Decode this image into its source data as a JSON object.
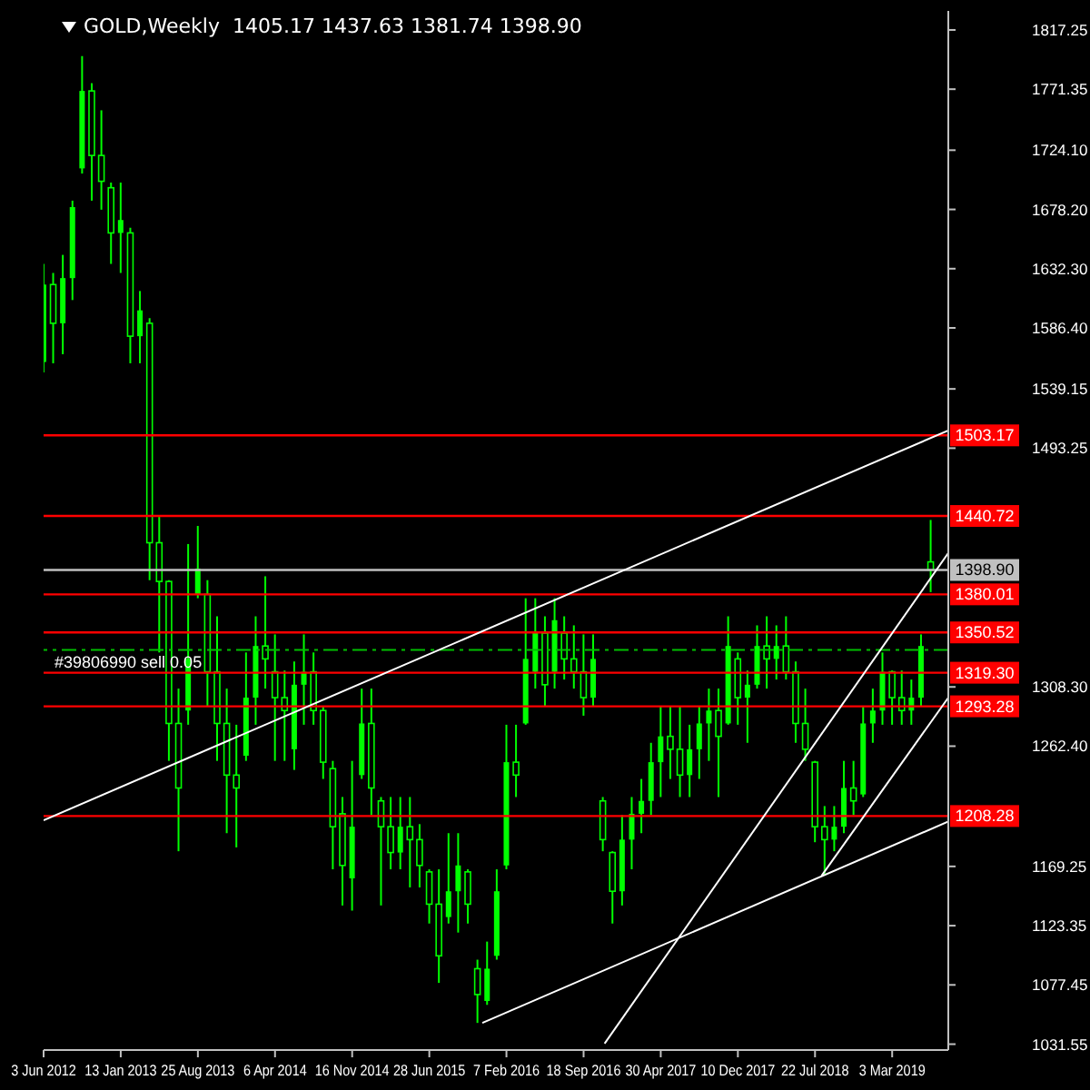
{
  "chart_data": {
    "type": "candlestick",
    "title": "GOLD,Weekly  1405.17 1437.63 1381.74 1398.90",
    "color": "#00ff00",
    "x": [
      "2012-06-03",
      "2012-07-01",
      "2012-07-29",
      "2012-08-26",
      "2012-09-23",
      "2012-10-21",
      "2012-11-18",
      "2012-12-16",
      "2013-01-13",
      "2013-02-10",
      "2013-03-10",
      "2013-04-07",
      "2013-05-05",
      "2013-06-02",
      "2013-06-30",
      "2013-07-28",
      "2013-08-25",
      "2013-09-22",
      "2013-10-20",
      "2013-11-17",
      "2013-12-15",
      "2014-01-12",
      "2014-02-09",
      "2014-03-09",
      "2014-04-06",
      "2014-05-04",
      "2014-06-01",
      "2014-06-29",
      "2014-07-27",
      "2014-08-24",
      "2014-09-21",
      "2014-10-19",
      "2014-11-16",
      "2014-12-14",
      "2015-01-11",
      "2015-02-08",
      "2015-03-08",
      "2015-04-05",
      "2015-05-03",
      "2015-05-31",
      "2015-06-28",
      "2015-07-26",
      "2015-08-23",
      "2015-09-20",
      "2015-10-18",
      "2015-11-15",
      "2015-12-13",
      "2016-01-10",
      "2016-02-07",
      "2016-03-06",
      "2016-04-03",
      "2016-05-01",
      "2016-05-29",
      "2016-06-26",
      "2016-07-24",
      "2016-08-21",
      "2016-09-18",
      "2016-10-16",
      "2016-11-13",
      "2016-12-11",
      "2017-01-08",
      "2017-02-05",
      "2017-03-05",
      "2017-04-02",
      "2017-04-30",
      "2017-05-28",
      "2017-06-25",
      "2017-07-23",
      "2017-08-20",
      "2017-09-17",
      "2017-10-15",
      "2017-11-12",
      "2017-12-10",
      "2018-01-07",
      "2018-02-04",
      "2018-03-04",
      "2018-04-01",
      "2018-04-29",
      "2018-05-27",
      "2018-06-24",
      "2018-07-22",
      "2018-08-19",
      "2018-09-16",
      "2018-10-14",
      "2018-11-11",
      "2018-12-09",
      "2019-01-06",
      "2019-02-03",
      "2019-03-03",
      "2019-03-31",
      "2019-04-28",
      "2019-05-26",
      "2019-06-23"
    ],
    "ohlc": [
      [
        1560,
        1636,
        1552,
        1620
      ],
      [
        1620,
        1629,
        1559,
        1590
      ],
      [
        1590,
        1643,
        1566,
        1625
      ],
      [
        1625,
        1685,
        1608,
        1680
      ],
      [
        1710,
        1797,
        1706,
        1770
      ],
      [
        1770,
        1776,
        1685,
        1720
      ],
      [
        1720,
        1755,
        1678,
        1700
      ],
      [
        1695,
        1699,
        1636,
        1660
      ],
      [
        1660,
        1699,
        1629,
        1670
      ],
      [
        1660,
        1664,
        1559,
        1580
      ],
      [
        1580,
        1615,
        1559,
        1600
      ],
      [
        1590,
        1594,
        1391,
        1420
      ],
      [
        1420,
        1440,
        1335,
        1390
      ],
      [
        1390,
        1391,
        1251,
        1280
      ],
      [
        1280,
        1307,
        1181,
        1230
      ],
      [
        1290,
        1419,
        1279,
        1330
      ],
      [
        1380,
        1433,
        1377,
        1400
      ],
      [
        1380,
        1391,
        1293,
        1320
      ],
      [
        1320,
        1363,
        1251,
        1280
      ],
      [
        1280,
        1307,
        1195,
        1240
      ],
      [
        1240,
        1279,
        1184,
        1230
      ],
      [
        1255,
        1335,
        1251,
        1300
      ],
      [
        1300,
        1363,
        1279,
        1340
      ],
      [
        1340,
        1394,
        1307,
        1330
      ],
      [
        1320,
        1349,
        1251,
        1300
      ],
      [
        1300,
        1321,
        1251,
        1290
      ],
      [
        1260,
        1328,
        1244,
        1310
      ],
      [
        1310,
        1349,
        1279,
        1320
      ],
      [
        1320,
        1335,
        1279,
        1290
      ],
      [
        1290,
        1293,
        1237,
        1250
      ],
      [
        1245,
        1251,
        1167,
        1200
      ],
      [
        1210,
        1223,
        1139,
        1170
      ],
      [
        1160,
        1251,
        1135,
        1200
      ],
      [
        1240,
        1307,
        1237,
        1280
      ],
      [
        1280,
        1307,
        1209,
        1230
      ],
      [
        1220,
        1223,
        1139,
        1200
      ],
      [
        1200,
        1223,
        1167,
        1180
      ],
      [
        1180,
        1223,
        1167,
        1200
      ],
      [
        1200,
        1223,
        1153,
        1190
      ],
      [
        1190,
        1202,
        1153,
        1170
      ],
      [
        1165,
        1167,
        1125,
        1140
      ],
      [
        1140,
        1167,
        1079,
        1100
      ],
      [
        1130,
        1195,
        1125,
        1150
      ],
      [
        1150,
        1195,
        1118,
        1170
      ],
      [
        1165,
        1167,
        1125,
        1140
      ],
      [
        1090,
        1097,
        1048,
        1070
      ],
      [
        1065,
        1111,
        1062,
        1090
      ],
      [
        1100,
        1167,
        1097,
        1150
      ],
      [
        1170,
        1279,
        1167,
        1250
      ],
      [
        1250,
        1279,
        1223,
        1240
      ],
      [
        1280,
        1377,
        1279,
        1330
      ],
      [
        1320,
        1377,
        1307,
        1350
      ],
      [
        1350,
        1363,
        1293,
        1310
      ],
      [
        1320,
        1377,
        1307,
        1360
      ],
      [
        1350,
        1363,
        1314,
        1330
      ],
      [
        1330,
        1356,
        1307,
        1320
      ],
      [
        1320,
        1349,
        1286,
        1300
      ],
      [
        1300,
        1349,
        1293,
        1330
      ],
      [
        1220,
        1223,
        1181,
        1190
      ],
      [
        1180,
        1181,
        1125,
        1150
      ],
      [
        1150,
        1209,
        1139,
        1190
      ],
      [
        1190,
        1223,
        1167,
        1210
      ],
      [
        1210,
        1237,
        1195,
        1220
      ],
      [
        1220,
        1265,
        1209,
        1250
      ],
      [
        1250,
        1293,
        1223,
        1270
      ],
      [
        1270,
        1293,
        1237,
        1260
      ],
      [
        1260,
        1293,
        1223,
        1240
      ],
      [
        1240,
        1279,
        1223,
        1260
      ],
      [
        1260,
        1293,
        1237,
        1280
      ],
      [
        1280,
        1307,
        1251,
        1290
      ],
      [
        1290,
        1307,
        1223,
        1270
      ],
      [
        1280,
        1363,
        1279,
        1340
      ],
      [
        1330,
        1335,
        1279,
        1300
      ],
      [
        1300,
        1321,
        1265,
        1310
      ],
      [
        1310,
        1356,
        1307,
        1340
      ],
      [
        1340,
        1363,
        1307,
        1330
      ],
      [
        1330,
        1356,
        1314,
        1340
      ],
      [
        1340,
        1363,
        1314,
        1320
      ],
      [
        1320,
        1328,
        1265,
        1280
      ],
      [
        1280,
        1307,
        1251,
        1260
      ],
      [
        1250,
        1251,
        1188,
        1200
      ],
      [
        1200,
        1216,
        1163,
        1190
      ],
      [
        1190,
        1216,
        1181,
        1200
      ],
      [
        1200,
        1251,
        1195,
        1230
      ],
      [
        1230,
        1251,
        1209,
        1220
      ],
      [
        1225,
        1293,
        1223,
        1280
      ],
      [
        1280,
        1307,
        1265,
        1290
      ],
      [
        1290,
        1335,
        1279,
        1320
      ],
      [
        1320,
        1321,
        1279,
        1300
      ],
      [
        1300,
        1321,
        1279,
        1290
      ],
      [
        1290,
        1314,
        1279,
        1300
      ],
      [
        1300,
        1349,
        1293,
        1340
      ],
      [
        1405.17,
        1437.63,
        1381.74,
        1398.9
      ]
    ],
    "series": [
      {
        "type": "line",
        "color": "#ffffff",
        "x": [
          "2012-06-03",
          "2019-08-13"
        ],
        "values": [
          1205,
          1507
        ]
      },
      {
        "type": "line",
        "color": "#ffffff",
        "x": [
          "2015-11-29",
          "2019-08-13"
        ],
        "values": [
          1048,
          1204
        ]
      },
      {
        "type": "line",
        "color": "#ffffff",
        "x": [
          "2016-11-18",
          "2019-08-13"
        ],
        "values": [
          1032,
          1412
        ]
      },
      {
        "type": "line",
        "color": "#ffffff",
        "x": [
          "2018-08-10",
          "2019-08-13"
        ],
        "values": [
          1162,
          1300
        ]
      }
    ],
    "xlim": [
      "2012-06-03",
      "2019-08-13"
    ],
    "xticks": [
      {
        "value": "2012-06-03",
        "label": "3 Jun 2012"
      },
      {
        "value": "2013-01-13",
        "label": "13 Jan 2013"
      },
      {
        "value": "2013-08-25",
        "label": "25 Aug 2013"
      },
      {
        "value": "2014-04-06",
        "label": "6 Apr 2014"
      },
      {
        "value": "2014-11-16",
        "label": "16 Nov 2014"
      },
      {
        "value": "2015-06-28",
        "label": "28 Jun 2015"
      },
      {
        "value": "2016-02-07",
        "label": "7 Feb 2016"
      },
      {
        "value": "2016-09-18",
        "label": "18 Sep 2016"
      },
      {
        "value": "2017-04-30",
        "label": "30 Apr 2017"
      },
      {
        "value": "2017-12-10",
        "label": "10 Dec 2017"
      },
      {
        "value": "2018-07-22",
        "label": "22 Jul 2018"
      },
      {
        "value": "2019-03-03",
        "label": "3 Mar 2019"
      }
    ],
    "ylim": [
      1027,
      1832
    ],
    "yticks": [
      1817.25,
      1771.35,
      {
        "value": 1724.1,
        "label": "1724.10"
      },
      {
        "value": 1678.2,
        "label": "1678.20"
      },
      {
        "value": 1632.3,
        "label": "1632.30"
      },
      {
        "value": 1586.4,
        "label": "1586.40"
      },
      1539.15,
      1493.25,
      {
        "value": 1308.3,
        "label": "1308.30"
      },
      {
        "value": 1262.4,
        "label": "1262.40"
      },
      1169.25,
      1123.35,
      1077.45,
      1031.55
    ],
    "ref_lines": [
      {
        "axis": "y",
        "value": 1503.17,
        "label": "1503.17",
        "color": "#ff0000"
      },
      {
        "axis": "y",
        "value": 1440.72,
        "label": "1440.72",
        "color": "#ff0000"
      },
      {
        "axis": "y",
        "value": 1398.9,
        "label": "1398.90",
        "color": "#c0c0c0"
      },
      {
        "axis": "y",
        "value": 1380.01,
        "label": "1380.01",
        "color": "#ff0000"
      },
      {
        "axis": "y",
        "value": 1350.52,
        "label": "1350.52",
        "color": "#ff0000"
      },
      {
        "axis": "y",
        "value": 1337,
        "label": "#39806990 sell 0.05",
        "color": "#00c000",
        "line_style": "dashed"
      },
      {
        "axis": "y",
        "value": 1319.3,
        "label": "1319.30",
        "color": "#ff0000"
      },
      {
        "axis": "y",
        "value": 1293.28,
        "label": "1293.28",
        "color": "#ff0000"
      },
      {
        "axis": "y",
        "value": 1208.28,
        "label": "1208.28",
        "color": "#ff0000"
      }
    ]
  }
}
